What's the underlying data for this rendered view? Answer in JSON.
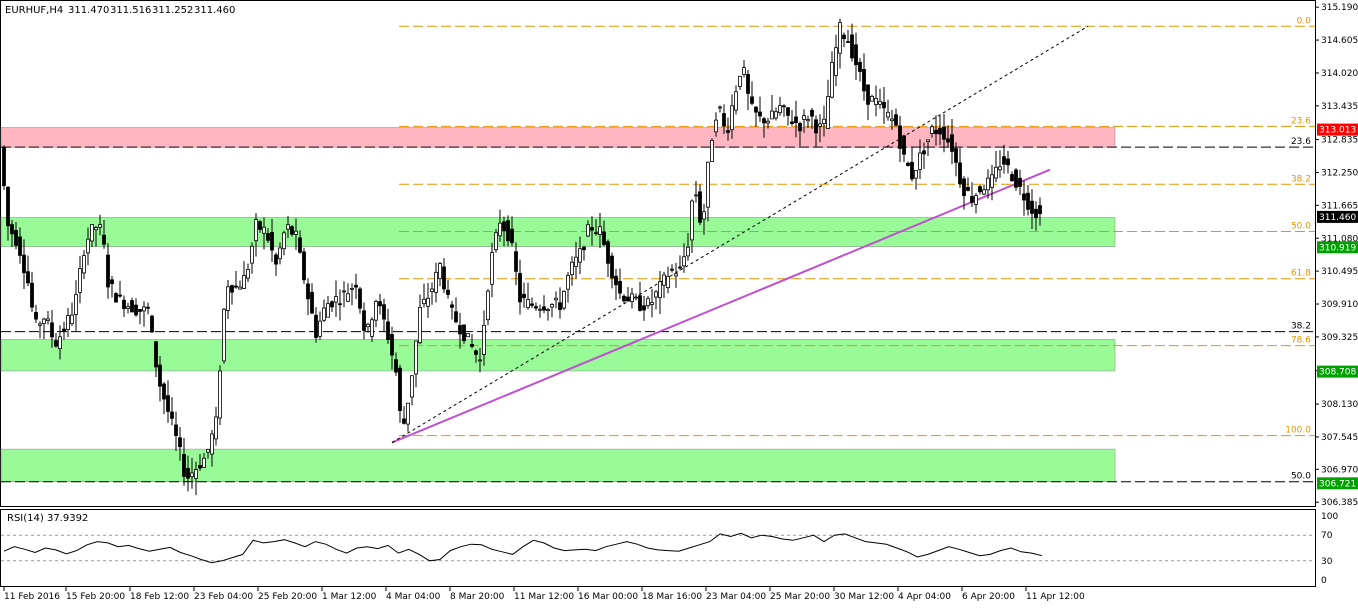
{
  "window": {
    "symbol_header": "EURHUF,H4",
    "ohlc": [
      "311.470",
      "311.516",
      "311.252",
      "311.460"
    ]
  },
  "chart_data": [
    {
      "type": "candlestick",
      "symbol": "EURHUF",
      "timeframe": "H4",
      "y_ticks": [
        315.19,
        314.605,
        314.02,
        313.435,
        312.835,
        312.25,
        311.665,
        311.08,
        310.495,
        309.91,
        309.325,
        308.725,
        308.13,
        307.545,
        306.97,
        306.385
      ],
      "y_tick_labels": [
        "315.190",
        "314.605",
        "314.020",
        "313.435",
        "312.835",
        "312.250",
        "311.665",
        "311.080",
        "310.495",
        "309.910",
        "309.325",
        "308.725",
        "308.130",
        "307.545",
        "306.970",
        "306.385"
      ],
      "ylim": [
        306.3,
        315.3
      ],
      "x_labels": [
        "11 Feb 2016",
        "15 Feb 20:00",
        "18 Feb 12:00",
        "23 Feb 04:00",
        "25 Feb 20:00",
        "1 Mar 12:00",
        "4 Mar 04:00",
        "8 Mar 20:00",
        "11 Mar 12:00",
        "16 Mar 00:00",
        "18 Mar 16:00",
        "23 Mar 04:00",
        "25 Mar 20:00",
        "30 Mar 12:00",
        "4 Apr 04:00",
        "6 Apr 20:00",
        "11 Apr 12:00"
      ],
      "price_path": [
        [
          0,
          312.7
        ],
        [
          8,
          311.3
        ],
        [
          18,
          311.0
        ],
        [
          28,
          310.3
        ],
        [
          35,
          309.5
        ],
        [
          45,
          309.7
        ],
        [
          55,
          309.2
        ],
        [
          65,
          309.5
        ],
        [
          75,
          309.9
        ],
        [
          85,
          311.0
        ],
        [
          95,
          311.3
        ],
        [
          102,
          311.2
        ],
        [
          108,
          310.3
        ],
        [
          118,
          310.0
        ],
        [
          128,
          309.9
        ],
        [
          138,
          309.8
        ],
        [
          148,
          309.8
        ],
        [
          158,
          308.6
        ],
        [
          168,
          308.0
        ],
        [
          178,
          307.4
        ],
        [
          186,
          306.8
        ],
        [
          196,
          307.0
        ],
        [
          206,
          307.2
        ],
        [
          216,
          307.8
        ],
        [
          226,
          310.3
        ],
        [
          236,
          310.2
        ],
        [
          246,
          310.4
        ],
        [
          256,
          311.3
        ],
        [
          266,
          311.2
        ],
        [
          276,
          310.6
        ],
        [
          286,
          311.3
        ],
        [
          296,
          311.1
        ],
        [
          306,
          310.2
        ],
        [
          316,
          309.4
        ],
        [
          326,
          309.9
        ],
        [
          336,
          310.0
        ],
        [
          346,
          310.1
        ],
        [
          356,
          310.3
        ],
        [
          366,
          309.3
        ],
        [
          376,
          310.0
        ],
        [
          386,
          309.5
        ],
        [
          396,
          308.7
        ],
        [
          402,
          307.6
        ],
        [
          410,
          308.4
        ],
        [
          420,
          309.8
        ],
        [
          430,
          310.1
        ],
        [
          440,
          310.6
        ],
        [
          450,
          309.8
        ],
        [
          460,
          309.5
        ],
        [
          470,
          309.2
        ],
        [
          480,
          308.9
        ],
        [
          490,
          310.6
        ],
        [
          500,
          311.4
        ],
        [
          510,
          311.1
        ],
        [
          520,
          310.0
        ],
        [
          530,
          309.9
        ],
        [
          540,
          309.9
        ],
        [
          550,
          309.9
        ],
        [
          560,
          309.9
        ],
        [
          570,
          310.5
        ],
        [
          580,
          310.8
        ],
        [
          590,
          311.3
        ],
        [
          600,
          311.2
        ],
        [
          610,
          310.6
        ],
        [
          620,
          310.1
        ],
        [
          630,
          310.0
        ],
        [
          640,
          309.9
        ],
        [
          650,
          309.9
        ],
        [
          660,
          310.2
        ],
        [
          670,
          310.5
        ],
        [
          680,
          310.5
        ],
        [
          688,
          311.0
        ],
        [
          694,
          312.1
        ],
        [
          702,
          311.2
        ],
        [
          710,
          312.7
        ],
        [
          718,
          313.5
        ],
        [
          726,
          312.9
        ],
        [
          734,
          313.6
        ],
        [
          742,
          314.2
        ],
        [
          750,
          313.4
        ],
        [
          760,
          313.2
        ],
        [
          770,
          313.2
        ],
        [
          780,
          313.4
        ],
        [
          790,
          313.2
        ],
        [
          800,
          313.1
        ],
        [
          810,
          313.3
        ],
        [
          818,
          313.0
        ],
        [
          824,
          313.1
        ],
        [
          832,
          314.1
        ],
        [
          840,
          314.8
        ],
        [
          848,
          314.6
        ],
        [
          856,
          314.2
        ],
        [
          866,
          313.6
        ],
        [
          876,
          313.5
        ],
        [
          886,
          313.3
        ],
        [
          896,
          313.1
        ],
        [
          904,
          312.5
        ],
        [
          912,
          312.2
        ],
        [
          922,
          312.6
        ],
        [
          932,
          313.0
        ],
        [
          942,
          313.0
        ],
        [
          952,
          312.7
        ],
        [
          962,
          312.0
        ],
        [
          972,
          311.8
        ],
        [
          982,
          312.0
        ],
        [
          992,
          312.1
        ],
        [
          1002,
          312.5
        ],
        [
          1012,
          312.2
        ],
        [
          1022,
          311.9
        ],
        [
          1032,
          311.6
        ],
        [
          1042,
          311.46
        ]
      ],
      "support_resistance_zones": [
        {
          "top": 313.05,
          "bottom": 312.7,
          "color": "#ffb6c1"
        },
        {
          "top": 311.45,
          "bottom": 310.93,
          "color": "#98fb98"
        },
        {
          "top": 309.28,
          "bottom": 308.72,
          "color": "#98fb98"
        },
        {
          "top": 307.33,
          "bottom": 306.75,
          "color": "#98fb98"
        }
      ],
      "horizontal_levels_dark": [
        {
          "price": 312.7,
          "label": "23.6"
        },
        {
          "price": 309.42,
          "label": "38.2"
        },
        {
          "price": 306.75,
          "label": "50.0"
        }
      ],
      "fibonacci_levels": [
        {
          "price": 314.85,
          "label": "0.0"
        },
        {
          "price": 313.07,
          "label": "23.6"
        },
        {
          "price": 312.04,
          "label": "38.2"
        },
        {
          "price": 311.2,
          "label": "50.0"
        },
        {
          "price": 310.36,
          "label": "61.8"
        },
        {
          "price": 309.17,
          "label": "78.6"
        },
        {
          "price": 307.57,
          "label": "100.0"
        }
      ],
      "price_tags": [
        {
          "price": 313.013,
          "label": "313.013",
          "bg": "#ff0000",
          "fg": "#ffffff"
        },
        {
          "price": 311.46,
          "label": "311.460",
          "bg": "#000000",
          "fg": "#ffffff"
        },
        {
          "price": 310.919,
          "label": "310.919",
          "bg": "#00a000",
          "fg": "#ffffff"
        },
        {
          "price": 308.708,
          "label": "308.708",
          "bg": "#00a000",
          "fg": "#ffffff"
        },
        {
          "price": 306.721,
          "label": "306.721",
          "bg": "#00a000",
          "fg": "#ffffff"
        }
      ],
      "colors": {
        "fib": "#e69500",
        "trendline": "#c050d0",
        "candle": "#000000",
        "zone_pink": "#ffb6c1",
        "zone_green": "#98fb98"
      }
    },
    {
      "type": "line",
      "title": "RSI(14) 37.9392",
      "ylim": [
        0,
        100
      ],
      "y_ticks": [
        100,
        70,
        30,
        0
      ],
      "levels": [
        70,
        30
      ],
      "series": [
        {
          "values": [
            45,
            52,
            48,
            43,
            50,
            47,
            41,
            46,
            55,
            60,
            58,
            52,
            54,
            49,
            45,
            48,
            51,
            43,
            38,
            32,
            27,
            30,
            35,
            40,
            62,
            58,
            60,
            63,
            58,
            52,
            60,
            56,
            48,
            42,
            50,
            52,
            49,
            54,
            42,
            48,
            40,
            30,
            32,
            46,
            52,
            56,
            55,
            48,
            44,
            40,
            52,
            62,
            58,
            50,
            46,
            47,
            48,
            46,
            52,
            56,
            60,
            56,
            50,
            47,
            46,
            45,
            50,
            55,
            60,
            72,
            68,
            73,
            66,
            70,
            68,
            64,
            62,
            66,
            70,
            60,
            70,
            72,
            66,
            60,
            58,
            56,
            50,
            44,
            36,
            40,
            46,
            52,
            48,
            43,
            38,
            40,
            46,
            50,
            44,
            42,
            38
          ]
        }
      ]
    }
  ]
}
